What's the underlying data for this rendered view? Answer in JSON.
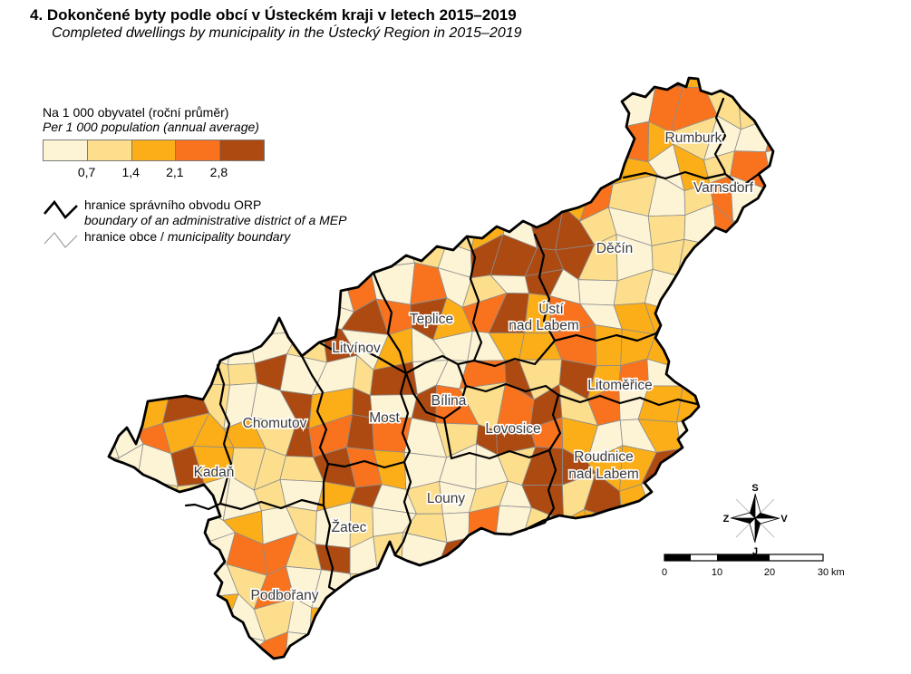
{
  "title": {
    "cs": "4. Dokončené byty podle obcí v Ústeckém kraji v letech 2015–2019",
    "en": "Completed dwellings by municipality in the Ústecký Region in 2015–2019"
  },
  "legend": {
    "title_cs": "Na 1 000 obyvatel (roční průměr)",
    "title_en": "Per 1 000 population (annual average)",
    "breaks": [
      "0,7",
      "1,4",
      "2,1",
      "2,8"
    ],
    "colors": [
      "#FDF3D5",
      "#FCDE8D",
      "#FBAE17",
      "#F9731E",
      "#AC4A12"
    ]
  },
  "boundary_legend": {
    "orp_cs": "hranice správního obvodu ORP",
    "orp_en": "boundary of an administrative district of a MEP",
    "municipality_cs": "hranice obce / ",
    "municipality_en": "municipality boundary"
  },
  "map": {
    "district_labels": [
      {
        "text": "Rumburk"
      },
      {
        "text": "Varnsdorf"
      },
      {
        "text": "Děčín"
      },
      {
        "text": "Ústí"
      },
      {
        "text": "nad Labem"
      },
      {
        "text": "Teplice"
      },
      {
        "text": "Litvínov"
      },
      {
        "text": "Litoměřice"
      },
      {
        "text": "Bílina"
      },
      {
        "text": "Most"
      },
      {
        "text": "Chomutov"
      },
      {
        "text": "Lovosice"
      },
      {
        "text": "Kadaň"
      },
      {
        "text": "Roudnice"
      },
      {
        "text": "nad Labem"
      },
      {
        "text": "Louny"
      },
      {
        "text": "Žatec"
      },
      {
        "text": "Podbořany"
      }
    ]
  },
  "compass": {
    "north": "S",
    "south": "J",
    "west": "Z",
    "east": "V"
  },
  "scalebar": {
    "ticks": [
      "0",
      "10",
      "20",
      "30"
    ],
    "unit": "km"
  }
}
